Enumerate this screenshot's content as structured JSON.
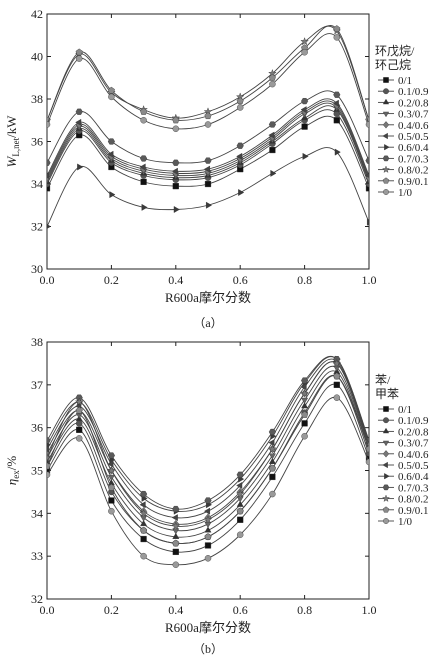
{
  "chart_data": [
    {
      "panel": "a",
      "caption": "（a）",
      "type": "line",
      "ylabel_main": "W",
      "ylabel_sub": "L,net",
      "ylabel_unit": "/kW",
      "xlabel": "R600a摩尔分数",
      "xlim": [
        0.0,
        1.0
      ],
      "ylim": [
        30,
        42
      ],
      "xticks": [
        "0.0",
        "0.2",
        "0.4",
        "0.6",
        "0.8",
        "1.0"
      ],
      "yticks": [
        "30",
        "32",
        "34",
        "36",
        "38",
        "40",
        "42"
      ],
      "legend_title": [
        "环戊烷/",
        "环己烷"
      ],
      "legend_position": "right",
      "x": [
        0.0,
        0.1,
        0.2,
        0.3,
        0.4,
        0.5,
        0.6,
        0.7,
        0.8,
        0.9,
        1.0
      ],
      "series": [
        {
          "name": "0/1",
          "marker": "square",
          "values": [
            33.8,
            36.3,
            34.8,
            34.1,
            33.9,
            34.0,
            34.7,
            35.6,
            36.7,
            37.0,
            33.8
          ]
        },
        {
          "name": "0.1/0.9",
          "marker": "circle",
          "values": [
            34.0,
            36.5,
            35.0,
            34.4,
            34.2,
            34.3,
            34.9,
            35.9,
            37.0,
            37.3,
            34.0
          ]
        },
        {
          "name": "0.2/0.8",
          "marker": "triup",
          "values": [
            34.1,
            36.6,
            35.1,
            34.5,
            34.3,
            34.4,
            35.0,
            36.0,
            37.1,
            37.5,
            34.1
          ]
        },
        {
          "name": "0.3/0.7",
          "marker": "tridown",
          "values": [
            34.2,
            36.7,
            35.2,
            34.6,
            34.4,
            34.5,
            35.1,
            36.1,
            37.3,
            37.6,
            34.2
          ]
        },
        {
          "name": "0.4/0.6",
          "marker": "diamond",
          "values": [
            34.3,
            36.8,
            35.3,
            34.7,
            34.5,
            34.6,
            35.2,
            36.2,
            37.4,
            37.7,
            34.3
          ]
        },
        {
          "name": "0.5/0.5",
          "marker": "trileft",
          "values": [
            34.4,
            36.9,
            35.4,
            34.8,
            34.6,
            34.7,
            35.3,
            36.3,
            37.5,
            37.8,
            34.4
          ]
        },
        {
          "name": "0.6/0.4",
          "marker": "triright",
          "values": [
            32.0,
            34.8,
            33.5,
            32.9,
            32.8,
            33.0,
            33.6,
            34.5,
            35.3,
            35.5,
            32.2
          ]
        },
        {
          "name": "0.7/0.3",
          "marker": "hexagon",
          "values": [
            35.0,
            37.4,
            36.0,
            35.2,
            35.0,
            35.1,
            35.8,
            36.8,
            37.9,
            38.2,
            35.1
          ]
        },
        {
          "name": "0.8/0.2",
          "marker": "star",
          "values": [
            37.0,
            40.1,
            38.3,
            37.5,
            37.1,
            37.4,
            38.1,
            39.2,
            40.7,
            41.2,
            37.0
          ]
        },
        {
          "name": "0.9/0.1",
          "marker": "pentagon",
          "values": [
            37.0,
            40.2,
            38.4,
            37.4,
            37.0,
            37.2,
            37.9,
            39.0,
            40.4,
            41.3,
            37.0
          ]
        },
        {
          "name": "1/0",
          "marker": "circle",
          "values": [
            36.8,
            39.9,
            38.1,
            37.0,
            36.6,
            36.8,
            37.6,
            38.7,
            40.2,
            40.9,
            36.8
          ]
        }
      ]
    },
    {
      "panel": "b",
      "caption": "（b）",
      "type": "line",
      "ylabel_main": "η",
      "ylabel_sub": "ex",
      "ylabel_unit": "/%",
      "xlabel": "R600a摩尔分数",
      "xlim": [
        0.0,
        1.0
      ],
      "ylim": [
        32,
        38
      ],
      "xticks": [
        "0.0",
        "0.2",
        "0.4",
        "0.6",
        "0.8",
        "1.0"
      ],
      "yticks": [
        "32",
        "33",
        "34",
        "35",
        "36",
        "37",
        "38"
      ],
      "legend_title": [
        "苯/",
        "甲苯"
      ],
      "legend_position": "right",
      "x": [
        0.0,
        0.1,
        0.2,
        0.3,
        0.4,
        0.5,
        0.6,
        0.7,
        0.8,
        0.9,
        1.0
      ],
      "series": [
        {
          "name": "0/1",
          "marker": "square",
          "values": [
            35.0,
            35.95,
            34.3,
            33.4,
            33.1,
            33.25,
            33.85,
            34.85,
            36.1,
            37.0,
            35.3
          ]
        },
        {
          "name": "0.1/0.9",
          "marker": "circle",
          "values": [
            35.1,
            36.1,
            34.5,
            33.6,
            33.3,
            33.45,
            34.05,
            35.05,
            36.35,
            37.2,
            35.4
          ]
        },
        {
          "name": "0.2/0.8",
          "marker": "triup",
          "values": [
            35.2,
            36.2,
            34.7,
            33.75,
            33.45,
            33.6,
            34.2,
            35.2,
            36.5,
            37.3,
            35.5
          ]
        },
        {
          "name": "0.3/0.7",
          "marker": "tridown",
          "values": [
            35.3,
            36.3,
            34.85,
            33.9,
            33.6,
            33.75,
            34.35,
            35.35,
            36.65,
            37.4,
            35.55
          ]
        },
        {
          "name": "0.4/0.6",
          "marker": "diamond",
          "values": [
            35.4,
            36.4,
            35.0,
            34.05,
            33.75,
            33.9,
            34.5,
            35.5,
            36.8,
            37.5,
            35.6
          ]
        },
        {
          "name": "0.5/0.5",
          "marker": "trileft",
          "values": [
            35.5,
            36.5,
            35.15,
            34.2,
            33.9,
            34.05,
            34.65,
            35.65,
            36.95,
            37.55,
            35.65
          ]
        },
        {
          "name": "0.6/0.4",
          "marker": "triright",
          "values": [
            35.6,
            36.6,
            35.25,
            34.35,
            34.05,
            34.2,
            34.8,
            35.8,
            37.05,
            37.6,
            35.7
          ]
        },
        {
          "name": "0.7/0.3",
          "marker": "hexagon",
          "values": [
            35.7,
            36.7,
            35.35,
            34.45,
            34.1,
            34.3,
            34.9,
            35.9,
            37.1,
            37.6,
            35.7
          ]
        },
        {
          "name": "0.8/0.2",
          "marker": "star",
          "values": [
            35.3,
            36.6,
            35.0,
            34.0,
            33.7,
            33.85,
            34.45,
            35.5,
            36.8,
            37.5,
            35.6
          ]
        },
        {
          "name": "0.9/0.1",
          "marker": "pentagon",
          "values": [
            35.1,
            36.4,
            34.6,
            33.6,
            33.3,
            33.45,
            34.05,
            35.05,
            36.3,
            37.2,
            35.5
          ]
        },
        {
          "name": "1/0",
          "marker": "circle",
          "values": [
            34.9,
            35.75,
            34.05,
            33.0,
            32.8,
            32.95,
            33.5,
            34.45,
            35.8,
            36.7,
            35.2
          ]
        }
      ]
    }
  ]
}
